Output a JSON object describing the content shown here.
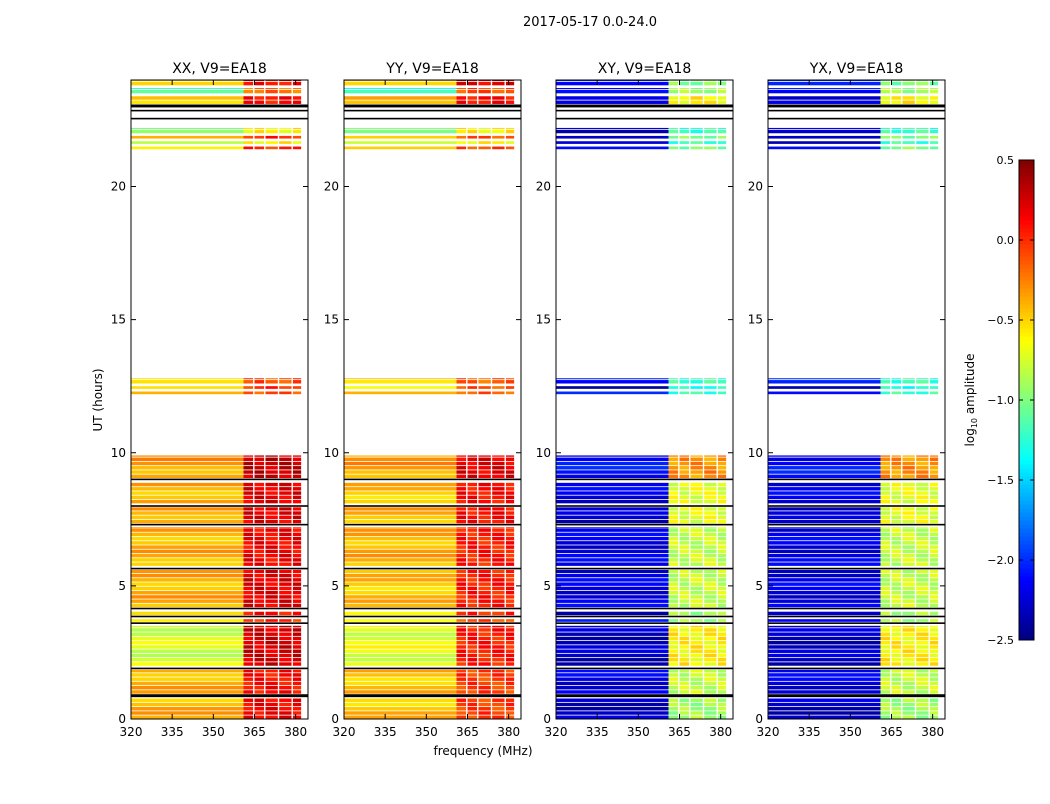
{
  "chart_data": {
    "type": "heatmap",
    "title": "2017-05-17 0.0-24.0",
    "xlabel": "frequency (MHz)",
    "ylabel": "UT (hours)",
    "xlim": [
      320,
      384.5
    ],
    "ylim": [
      0,
      24
    ],
    "xticks": [
      320,
      335,
      350,
      365,
      380
    ],
    "yticks": [
      0,
      5,
      10,
      15,
      20
    ],
    "colorbar": {
      "label": "log10 amplitude",
      "label_main": "log",
      "label_sub": "10",
      "label_rest": " amplitude",
      "range": [
        -2.5,
        0.5
      ],
      "ticks": [
        "0.5",
        "0.0",
        "−0.5",
        "−1.0",
        "−1.5",
        "−2.0",
        "−2.5"
      ],
      "tick_values": [
        0.5,
        0.0,
        -0.5,
        -1.0,
        -1.5,
        -2.0,
        -2.5
      ],
      "colormap": "jet"
    },
    "freq_blocks": [
      {
        "range": [
          320,
          361
        ],
        "band": "low"
      },
      {
        "range": [
          361,
          364.5
        ],
        "band": "high"
      },
      {
        "range": [
          365,
          368.5
        ],
        "band": "high"
      },
      {
        "range": [
          369,
          373.5
        ],
        "band": "high"
      },
      {
        "range": [
          374,
          378.5
        ],
        "band": "high"
      },
      {
        "range": [
          379,
          382
        ],
        "band": "high"
      }
    ],
    "time_strips": [
      [
        0,
        0.8
      ],
      [
        0.95,
        1.85
      ],
      [
        2.0,
        3.5
      ],
      [
        3.65,
        3.75
      ],
      [
        3.9,
        4.05
      ],
      [
        4.2,
        5.6
      ],
      [
        5.75,
        7.2
      ],
      [
        7.35,
        7.95
      ],
      [
        8.1,
        8.9
      ],
      [
        9.05,
        9.9
      ],
      [
        12.2,
        12.3
      ],
      [
        12.4,
        12.5
      ],
      [
        12.6,
        12.8
      ],
      [
        21.4,
        21.5
      ],
      [
        21.6,
        21.7
      ],
      [
        21.8,
        21.9
      ],
      [
        22.0,
        22.2
      ],
      [
        23.1,
        23.4
      ],
      [
        23.5,
        23.7
      ],
      [
        23.8,
        24.0
      ]
    ],
    "flag_lines": [
      0.85,
      0.9,
      1.9,
      3.6,
      3.85,
      4.15,
      5.65,
      7.3,
      8.0,
      9.0,
      22.55,
      22.85,
      23.0,
      23.05
    ],
    "panels": [
      {
        "title": "XX, V9=EA18",
        "low": [
          -0.4,
          -0.4,
          -0.75,
          -0.7,
          -0.5,
          -0.4,
          -0.4,
          -0.35,
          -0.4,
          -0.35,
          -0.5,
          -0.6,
          -0.45,
          -0.5,
          -0.9,
          -0.5,
          -0.9,
          -0.45,
          -1.2,
          -0.4
        ],
        "high": [
          0.15,
          0.1,
          0.25,
          0.0,
          0.1,
          0.2,
          0.15,
          0.2,
          0.2,
          0.3,
          -0.1,
          0.0,
          -0.1,
          0.0,
          -0.6,
          0.0,
          -0.6,
          0.1,
          -0.2,
          0.1
        ]
      },
      {
        "title": "YY, V9=EA18",
        "low": [
          -0.45,
          -0.45,
          -0.7,
          -0.7,
          -0.5,
          -0.45,
          -0.4,
          -0.4,
          -0.45,
          -0.35,
          -0.5,
          -0.6,
          -0.45,
          -0.5,
          -0.9,
          -0.5,
          -0.9,
          -0.45,
          -1.2,
          -0.4
        ],
        "high": [
          -0.05,
          -0.05,
          0.05,
          -0.1,
          0.0,
          0.05,
          0.05,
          0.1,
          0.1,
          0.2,
          -0.15,
          -0.1,
          -0.15,
          -0.1,
          -0.6,
          -0.1,
          -0.6,
          0.1,
          -0.1,
          0.2
        ]
      },
      {
        "title": "XY, V9=EA18",
        "low": [
          -2.3,
          -2.2,
          -2.3,
          -2.0,
          -2.3,
          -2.2,
          -2.2,
          -2.3,
          -2.2,
          -2.1,
          -2.0,
          -2.3,
          -2.1,
          -2.2,
          -2.3,
          -2.2,
          -2.3,
          -2.3,
          -2.0,
          -2.1
        ],
        "high": [
          -0.9,
          -0.8,
          -0.6,
          -0.9,
          -0.9,
          -0.8,
          -0.8,
          -0.7,
          -0.7,
          -0.3,
          -1.2,
          -1.3,
          -1.2,
          -1.0,
          -1.2,
          -1.0,
          -1.2,
          -0.6,
          -0.9,
          -1.0
        ]
      },
      {
        "title": "YX, V9=EA18",
        "low": [
          -2.3,
          -2.2,
          -2.3,
          -2.0,
          -2.3,
          -2.2,
          -2.2,
          -2.3,
          -2.2,
          -2.1,
          -2.0,
          -2.3,
          -2.1,
          -2.2,
          -2.3,
          -2.2,
          -2.3,
          -2.3,
          -2.0,
          -2.1
        ],
        "high": [
          -0.9,
          -0.8,
          -0.6,
          -0.9,
          -0.9,
          -0.8,
          -0.8,
          -0.7,
          -0.7,
          -0.3,
          -1.2,
          -1.3,
          -1.2,
          -1.0,
          -1.2,
          -1.0,
          -1.2,
          -0.6,
          -0.9,
          -1.0
        ]
      }
    ]
  }
}
